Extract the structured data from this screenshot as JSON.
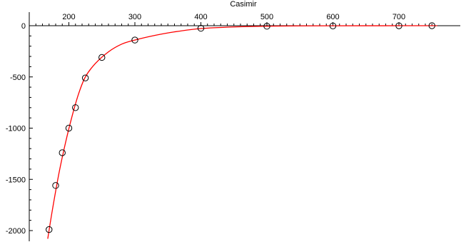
{
  "chart_data": {
    "type": "scatter",
    "title": "Casimir",
    "xlabel": "",
    "ylabel": "",
    "xlim": [
      140,
      760
    ],
    "ylim": [
      -2100,
      0
    ],
    "x_ticks": [
      {
        "value": 200,
        "label": "200"
      },
      {
        "value": 300,
        "label": "300"
      },
      {
        "value": 400,
        "label": "400"
      },
      {
        "value": 500,
        "label": "500"
      },
      {
        "value": 600,
        "label": "600"
      },
      {
        "value": 700,
        "label": "700"
      }
    ],
    "y_ticks": [
      {
        "value": 0,
        "label": "0"
      },
      {
        "value": -500,
        "label": "-500"
      },
      {
        "value": -1000,
        "label": "-1000"
      },
      {
        "value": -1500,
        "label": "-1500"
      },
      {
        "value": -2000,
        "label": "-2000"
      }
    ],
    "grid": false,
    "series": [
      {
        "kind": "points",
        "marker": "open-circle",
        "color": "#000000",
        "x": [
          170,
          180,
          190,
          200,
          210,
          225,
          250,
          300,
          400,
          500,
          600,
          700,
          750
        ],
        "y": [
          -1990,
          -1560,
          -1240,
          -1000,
          -800,
          -510,
          -310,
          -140,
          -25,
          -5,
          -2,
          -1,
          0
        ]
      },
      {
        "kind": "fit-curve",
        "color": "#ff0000",
        "x": [
          168,
          175,
          185,
          195,
          205,
          215,
          225,
          240,
          260,
          280,
          300,
          330,
          360,
          400,
          450,
          500,
          550,
          600,
          650,
          700,
          750,
          758
        ],
        "y": [
          -2080,
          -1800,
          -1440,
          -1140,
          -880,
          -660,
          -500,
          -370,
          -255,
          -180,
          -140,
          -95,
          -60,
          -28,
          -12,
          -5,
          -2,
          -1,
          -0.5,
          -0.2,
          0,
          0
        ]
      }
    ]
  }
}
